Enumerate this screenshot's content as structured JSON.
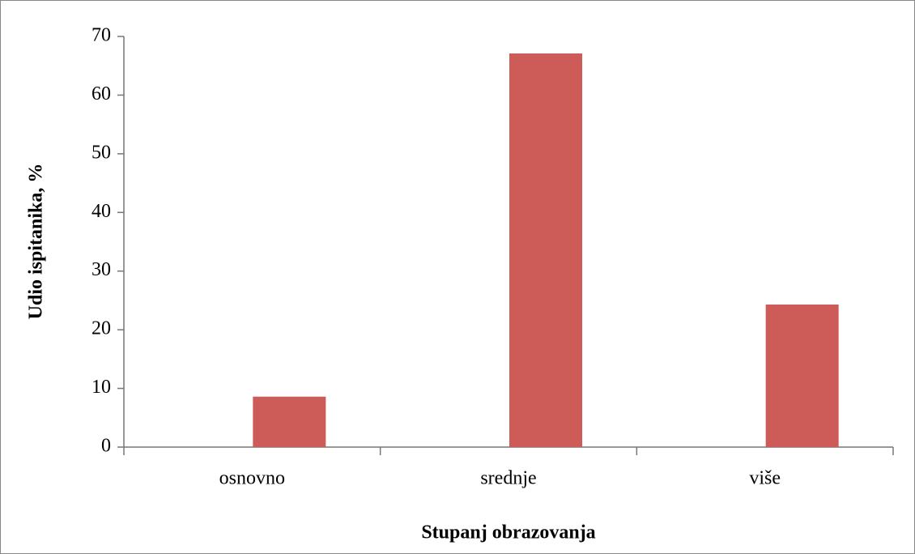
{
  "chart_data": {
    "type": "bar",
    "xlabel": "Stupanj obrazovanja",
    "ylabel": "Udio ispitanika, %",
    "categories": [
      "osnovno",
      "srednje",
      "više"
    ],
    "values": [
      8.6,
      67.1,
      24.3
    ],
    "color": "#cd5b58",
    "ylim": [
      0,
      70
    ],
    "yticks": [
      0,
      10,
      20,
      30,
      40,
      50,
      60,
      70
    ],
    "grid": false
  }
}
